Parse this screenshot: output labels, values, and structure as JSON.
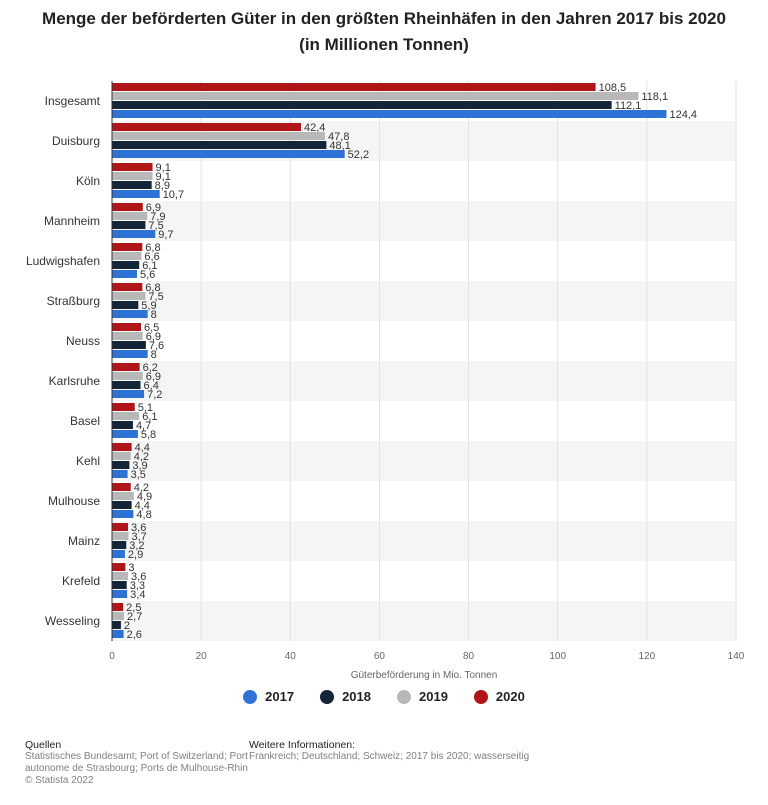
{
  "title": {
    "line1": "Menge der beförderten Güter in den größten Rheinhäfen in den Jahren 2017 bis 2020",
    "line2": "(in Millionen Tonnen)"
  },
  "chart_data": {
    "type": "bar",
    "orientation": "horizontal",
    "title": "Menge der beförderten Güter in den größten Rheinhäfen in den Jahren 2017 bis 2020 (in Millionen Tonnen)",
    "xlabel": "Güterbeförderung in Mio. Tonnen",
    "ylabel": "",
    "xlim": [
      0,
      140
    ],
    "xticks": [
      0,
      20,
      40,
      60,
      80,
      100,
      120,
      140
    ],
    "grid": true,
    "legend_position": "bottom",
    "categories": [
      "Insgesamt",
      "Duisburg",
      "Köln",
      "Mannheim",
      "Ludwigshafen",
      "Straßburg",
      "Neuss",
      "Karlsruhe",
      "Basel",
      "Kehl",
      "Mulhouse",
      "Mainz",
      "Krefeld",
      "Wesseling"
    ],
    "series": [
      {
        "name": "2020",
        "color": "#b01518",
        "values": [
          108.5,
          42.4,
          9.1,
          6.9,
          6.8,
          6.8,
          6.5,
          6.2,
          5.1,
          4.4,
          4.2,
          3.6,
          3,
          2.5
        ]
      },
      {
        "name": "2019",
        "color": "#b8b8b8",
        "values": [
          118.1,
          47.8,
          9.1,
          7.9,
          6.6,
          7.5,
          6.9,
          6.9,
          6.1,
          4.2,
          4.9,
          3.7,
          3.6,
          2.7
        ]
      },
      {
        "name": "2018",
        "color": "#132538",
        "values": [
          112.1,
          48.1,
          8.9,
          7.5,
          6.1,
          5.9,
          7.6,
          6.4,
          4.7,
          3.9,
          4.4,
          3.2,
          3.3,
          2
        ]
      },
      {
        "name": "2017",
        "color": "#2f72d6",
        "values": [
          124.4,
          52.2,
          10.7,
          9.7,
          5.6,
          8,
          8,
          7.2,
          5.8,
          3.5,
          4.8,
          2.9,
          3.4,
          2.6
        ]
      }
    ]
  },
  "legend": {
    "items": [
      {
        "label": "2017",
        "color": "#2f72d6"
      },
      {
        "label": "2018",
        "color": "#132538"
      },
      {
        "label": "2019",
        "color": "#b8b8b8"
      },
      {
        "label": "2020",
        "color": "#b01518"
      }
    ]
  },
  "footer": {
    "sources_heading": "Quellen",
    "sources_line1": "Statistisches Bundesamt; Port of Switzerland; Port",
    "sources_line2": "autonome de Strasbourg; Ports de Mulhouse-Rhin",
    "copyright": "© Statista 2022",
    "info_heading": "Weitere Informationen:",
    "info_text": "Frankreich; Deutschland; Schweiz; 2017 bis 2020; wasserseitig"
  }
}
